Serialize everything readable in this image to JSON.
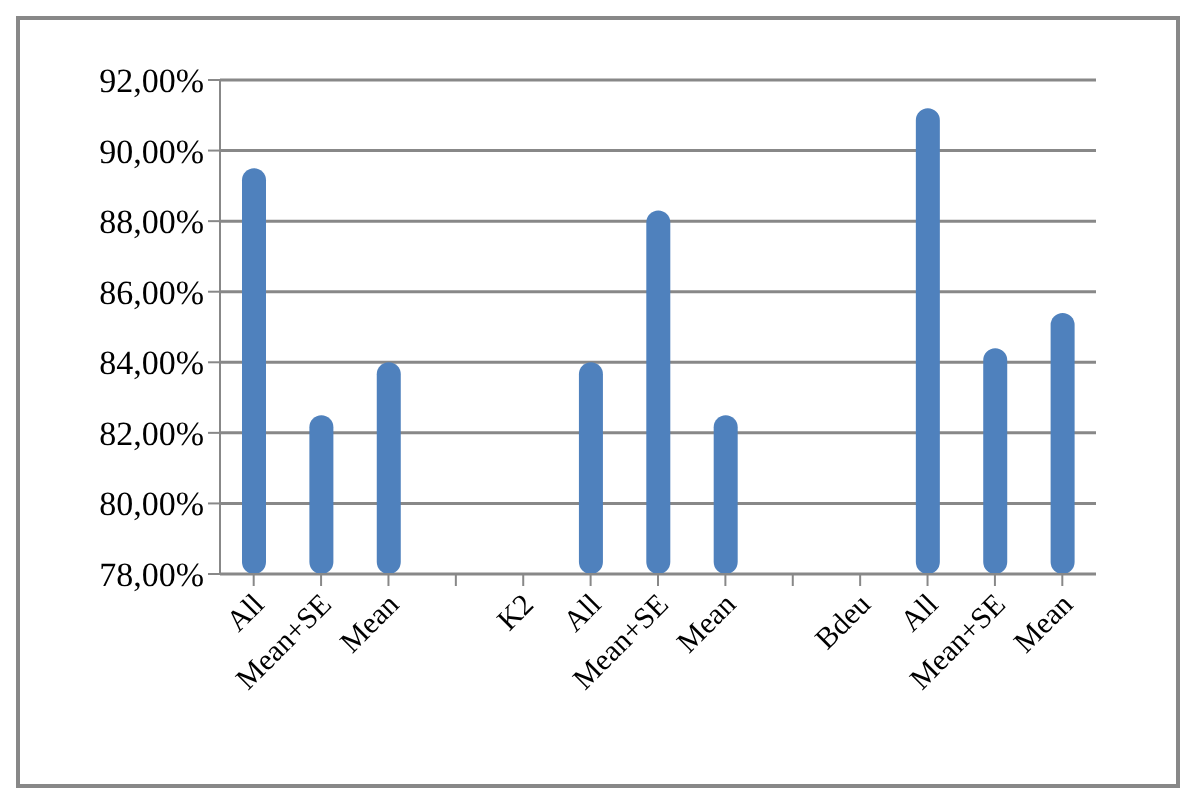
{
  "chart_data": {
    "type": "bar",
    "categories": [
      "All",
      "Mean+SE",
      "Mean",
      null,
      "K2",
      "All",
      "Mean+SE",
      "Mean",
      null,
      "Bdeu",
      "All",
      "Mean+SE",
      "Mean"
    ],
    "values": [
      89.5,
      82.5,
      84.0,
      null,
      null,
      84.0,
      88.3,
      82.5,
      null,
      null,
      91.2,
      84.4,
      85.4
    ],
    "color": "#4f81bd",
    "ylim": [
      78,
      92
    ],
    "yticks": [
      {
        "value": 78,
        "label": "78,00%"
      },
      {
        "value": 80,
        "label": "80,00%"
      },
      {
        "value": 82,
        "label": "82,00%"
      },
      {
        "value": 84,
        "label": "84,00%"
      },
      {
        "value": 86,
        "label": "86,00%"
      },
      {
        "value": 88,
        "label": "88,00%"
      },
      {
        "value": 90,
        "label": "90,00%"
      },
      {
        "value": 92,
        "label": "92,00%"
      }
    ],
    "grid": "y",
    "legend": false
  }
}
